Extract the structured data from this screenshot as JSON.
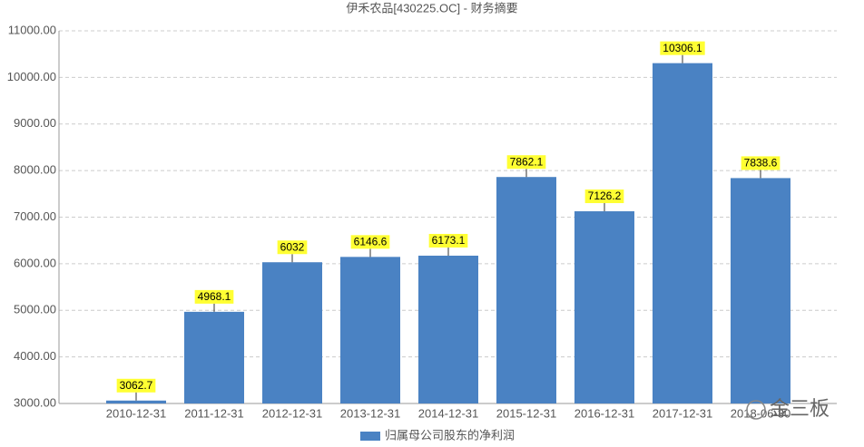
{
  "chart_data": {
    "type": "bar",
    "title": "伊禾农品[430225.OC] - 财务摘要",
    "categories": [
      "2010-12-31",
      "2011-12-31",
      "2012-12-31",
      "2013-12-31",
      "2014-12-31",
      "2015-12-31",
      "2016-12-31",
      "2017-12-31",
      "2018-06-30"
    ],
    "series": [
      {
        "name": "归属母公司股东的净利润",
        "color": "#4a82c3",
        "values": [
          3062.7,
          4968.1,
          6032,
          6146.6,
          6173.1,
          7862.1,
          7126.2,
          10306.1,
          7838.6
        ]
      }
    ],
    "ylim": [
      3000,
      11000
    ],
    "yticks": [
      {
        "value": 3000,
        "label": "3000.00"
      },
      {
        "value": 4000,
        "label": "4000.00"
      },
      {
        "value": 5000,
        "label": "5000.00"
      },
      {
        "value": 6000,
        "label": "6000.00"
      },
      {
        "value": 7000,
        "label": "7000.00"
      },
      {
        "value": 8000,
        "label": "8000.00"
      },
      {
        "value": 9000,
        "label": "9000.00"
      },
      {
        "value": 10000,
        "label": "10000.00"
      },
      {
        "value": 11000,
        "label": "11000.00"
      }
    ],
    "grid": true,
    "watermark": "金三板"
  }
}
